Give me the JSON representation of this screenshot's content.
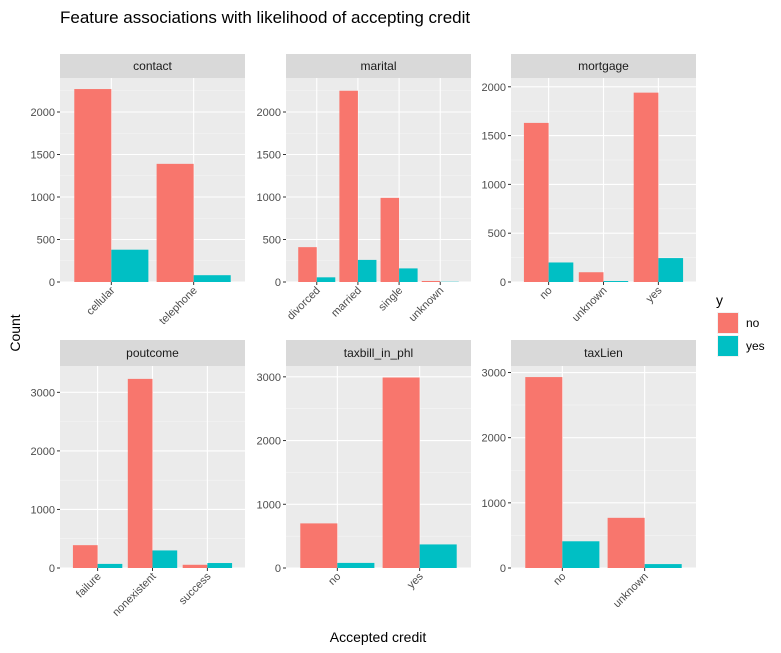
{
  "chart_data": {
    "type": "bar",
    "title": "Feature associations with likelihood of accepting credit",
    "xlabel": "Accepted credit",
    "ylabel": "Count",
    "legend": {
      "title": "y",
      "placement": "right",
      "entries": [
        {
          "name": "no",
          "color": "#F8766D"
        },
        {
          "name": "yes",
          "color": "#00BFC4"
        }
      ]
    },
    "grid": true,
    "facets": [
      {
        "label": "contact",
        "categories": [
          "cellular",
          "telephone"
        ],
        "series": [
          {
            "name": "no",
            "values": [
              2270,
              1390
            ]
          },
          {
            "name": "yes",
            "values": [
              380,
              80
            ]
          }
        ],
        "ylim": [
          0,
          2400
        ],
        "yticks": [
          0,
          500,
          1000,
          1500,
          2000
        ]
      },
      {
        "label": "marital",
        "categories": [
          "divorced",
          "married",
          "single",
          "unknown"
        ],
        "series": [
          {
            "name": "no",
            "values": [
              410,
              2250,
              990,
              12
            ]
          },
          {
            "name": "yes",
            "values": [
              55,
              260,
              160,
              3
            ]
          }
        ],
        "ylim": [
          0,
          2400
        ],
        "yticks": [
          0,
          500,
          1000,
          1500,
          2000
        ]
      },
      {
        "label": "mortgage",
        "categories": [
          "no",
          "unknown",
          "yes"
        ],
        "series": [
          {
            "name": "no",
            "values": [
              1630,
              100,
              1940
            ]
          },
          {
            "name": "yes",
            "values": [
              200,
              10,
              245
            ]
          }
        ],
        "ylim": [
          0,
          2090
        ],
        "yticks": [
          0,
          500,
          1000,
          1500,
          2000
        ]
      },
      {
        "label": "poutcome",
        "categories": [
          "failure",
          "nonexistent",
          "success"
        ],
        "series": [
          {
            "name": "no",
            "values": [
              390,
              3230,
              55
            ]
          },
          {
            "name": "yes",
            "values": [
              70,
              300,
              85
            ]
          }
        ],
        "ylim": [
          0,
          3450
        ],
        "yticks": [
          0,
          1000,
          2000,
          3000
        ]
      },
      {
        "label": "taxbill_in_phl",
        "categories": [
          "no",
          "yes"
        ],
        "series": [
          {
            "name": "no",
            "values": [
              700,
              2990
            ]
          },
          {
            "name": "yes",
            "values": [
              80,
              370
            ]
          }
        ],
        "ylim": [
          0,
          3170
        ],
        "yticks": [
          0,
          1000,
          2000,
          3000
        ]
      },
      {
        "label": "taxLien",
        "categories": [
          "no",
          "unknown"
        ],
        "series": [
          {
            "name": "no",
            "values": [
              2930,
              770
            ]
          },
          {
            "name": "yes",
            "values": [
              410,
              60
            ]
          }
        ],
        "ylim": [
          0,
          3100
        ],
        "yticks": [
          0,
          1000,
          2000,
          3000
        ]
      }
    ]
  }
}
